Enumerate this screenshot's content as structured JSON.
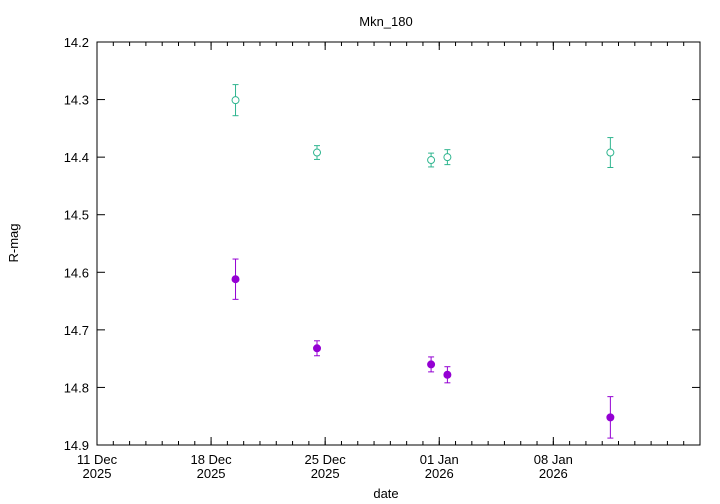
{
  "chart_data": {
    "type": "scatter",
    "title": "Mkn_180",
    "xlabel": "date",
    "ylabel": "R-mag",
    "y_axis_inverted": true,
    "ylim": [
      14.2,
      14.9
    ],
    "y_ticks": [
      "14.2",
      "14.3",
      "14.4",
      "14.5",
      "14.6",
      "14.7",
      "14.8",
      "14.9"
    ],
    "xlim": [
      "2025-12-11",
      "2026-01-17"
    ],
    "x_ticks": [
      {
        "date": "2025-12-11",
        "label_line1": "11 Dec",
        "label_line2": "2025"
      },
      {
        "date": "2025-12-18",
        "label_line1": "18 Dec",
        "label_line2": "2025"
      },
      {
        "date": "2025-12-25",
        "label_line1": "25 Dec",
        "label_line2": "2025"
      },
      {
        "date": "2026-01-01",
        "label_line1": "01 Jan",
        "label_line2": "2026"
      },
      {
        "date": "2026-01-08",
        "label_line1": "08 Jan",
        "label_line2": "2026"
      }
    ],
    "x_minor_tick_interval_days": 1,
    "grid": false,
    "series": [
      {
        "marker": "open-circle",
        "color": "#2fb58f",
        "points": [
          {
            "x": "2025-12-19T12:00",
            "y": 14.301,
            "err": 0.027
          },
          {
            "x": "2025-12-24T12:00",
            "y": 14.392,
            "err": 0.012
          },
          {
            "x": "2025-12-31T12:00",
            "y": 14.405,
            "err": 0.012
          },
          {
            "x": "2026-01-01T12:00",
            "y": 14.4,
            "err": 0.013
          },
          {
            "x": "2026-01-11T12:00",
            "y": 14.392,
            "err": 0.026
          }
        ]
      },
      {
        "marker": "filled-circle",
        "color": "#9400d3",
        "points": [
          {
            "x": "2025-12-19T12:00",
            "y": 14.612,
            "err": 0.035
          },
          {
            "x": "2025-12-24T12:00",
            "y": 14.732,
            "err": 0.013
          },
          {
            "x": "2025-12-31T12:00",
            "y": 14.76,
            "err": 0.013
          },
          {
            "x": "2026-01-01T12:00",
            "y": 14.778,
            "err": 0.014
          },
          {
            "x": "2026-01-11T12:00",
            "y": 14.852,
            "err": 0.036
          }
        ]
      }
    ]
  }
}
